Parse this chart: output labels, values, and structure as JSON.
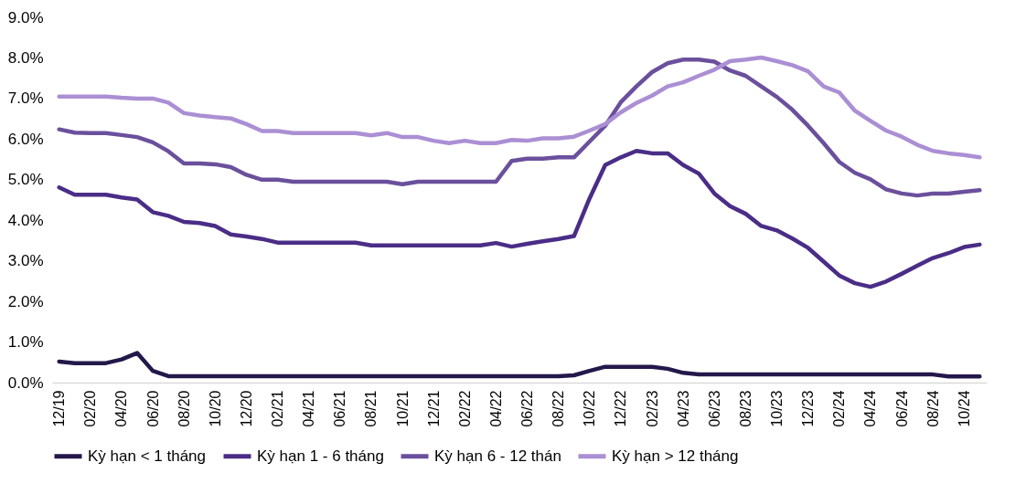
{
  "chart_data": {
    "type": "line",
    "categories": [
      "12/19",
      null,
      "02/20",
      null,
      "04/20",
      null,
      "06/20",
      null,
      "08/20",
      null,
      "10/20",
      null,
      "12/20",
      null,
      "02/21",
      null,
      "04/21",
      null,
      "06/21",
      null,
      "08/21",
      null,
      "10/21",
      null,
      "12/21",
      null,
      "02/22",
      null,
      "04/22",
      null,
      "06/22",
      null,
      "08/22",
      null,
      "10/22",
      null,
      "12/22",
      null,
      "02/23",
      null,
      "04/23",
      null,
      "06/23",
      null,
      "08/23",
      null,
      "10/23",
      null,
      "12/23",
      null,
      "02/24",
      null,
      "04/24",
      null,
      "06/24",
      null,
      "08/24",
      null,
      "10/24",
      null
    ],
    "series": [
      {
        "name": "Kỳ hạn < 1 tháng",
        "color": "#24184a",
        "values": [
          0.52,
          0.48,
          0.48,
          0.48,
          0.57,
          0.73,
          0.29,
          0.16,
          0.16,
          0.16,
          0.16,
          0.16,
          0.16,
          0.16,
          0.16,
          0.16,
          0.16,
          0.16,
          0.16,
          0.16,
          0.16,
          0.16,
          0.16,
          0.16,
          0.16,
          0.16,
          0.16,
          0.16,
          0.16,
          0.16,
          0.16,
          0.16,
          0.16,
          0.18,
          0.29,
          0.39,
          0.39,
          0.39,
          0.39,
          0.34,
          0.24,
          0.2,
          0.2,
          0.2,
          0.2,
          0.2,
          0.2,
          0.2,
          0.2,
          0.2,
          0.2,
          0.2,
          0.2,
          0.2,
          0.2,
          0.2,
          0.2,
          0.15,
          0.15,
          0.15
        ]
      },
      {
        "name": "Kỳ hạn 1 - 6 tháng",
        "color": "#4a2d86",
        "values": [
          4.81,
          4.63,
          4.63,
          4.63,
          4.56,
          4.51,
          4.2,
          4.11,
          3.96,
          3.93,
          3.86,
          3.65,
          3.6,
          3.54,
          3.45,
          3.45,
          3.45,
          3.45,
          3.45,
          3.45,
          3.38,
          3.38,
          3.38,
          3.38,
          3.38,
          3.38,
          3.38,
          3.38,
          3.44,
          3.35,
          3.42,
          3.48,
          3.54,
          3.61,
          4.54,
          5.36,
          5.55,
          5.71,
          5.65,
          5.65,
          5.36,
          5.15,
          4.66,
          4.35,
          4.16,
          3.86,
          3.75,
          3.55,
          3.32,
          2.98,
          2.64,
          2.45,
          2.36,
          2.49,
          2.68,
          2.88,
          3.07,
          3.19,
          3.34,
          3.4
        ]
      },
      {
        "name": "Kỳ hạn 6 - 12 thán",
        "color": "#6a509c",
        "values": [
          6.24,
          6.16,
          6.15,
          6.15,
          6.1,
          6.05,
          5.92,
          5.7,
          5.4,
          5.4,
          5.38,
          5.31,
          5.12,
          5.0,
          5.0,
          4.95,
          4.95,
          4.95,
          4.95,
          4.95,
          4.95,
          4.95,
          4.89,
          4.95,
          4.95,
          4.95,
          4.95,
          4.95,
          4.95,
          5.46,
          5.52,
          5.52,
          5.55,
          5.55,
          5.94,
          6.33,
          6.91,
          7.3,
          7.65,
          7.87,
          7.96,
          7.96,
          7.91,
          7.69,
          7.56,
          7.3,
          7.04,
          6.72,
          6.33,
          5.9,
          5.44,
          5.17,
          5.01,
          4.76,
          4.66,
          4.61,
          4.66,
          4.66,
          4.7,
          4.74
        ]
      },
      {
        "name": "Kỳ hạn > 12 tháng",
        "color": "#ab8fd4",
        "values": [
          7.05,
          7.05,
          7.05,
          7.05,
          7.02,
          7.0,
          7.0,
          6.9,
          6.64,
          6.58,
          6.54,
          6.51,
          6.37,
          6.2,
          6.2,
          6.15,
          6.15,
          6.15,
          6.15,
          6.15,
          6.09,
          6.15,
          6.05,
          6.05,
          5.96,
          5.9,
          5.96,
          5.9,
          5.9,
          5.98,
          5.96,
          6.02,
          6.02,
          6.06,
          6.21,
          6.37,
          6.66,
          6.89,
          7.07,
          7.3,
          7.4,
          7.56,
          7.71,
          7.92,
          7.96,
          8.01,
          7.92,
          7.82,
          7.67,
          7.3,
          7.15,
          6.7,
          6.45,
          6.21,
          6.06,
          5.86,
          5.71,
          5.65,
          5.61,
          5.55
        ]
      }
    ],
    "ylim": [
      0,
      9
    ],
    "yticks": [
      {
        "value": 0,
        "label": "0.0%"
      },
      {
        "value": 1,
        "label": "1.0%"
      },
      {
        "value": 2,
        "label": "2.0%"
      },
      {
        "value": 3,
        "label": "3.0%"
      },
      {
        "value": 4,
        "label": "4.0%"
      },
      {
        "value": 5,
        "label": "5.0%"
      },
      {
        "value": 6,
        "label": "6.0%"
      },
      {
        "value": 7,
        "label": "7.0%"
      },
      {
        "value": 8,
        "label": "8.0%"
      },
      {
        "value": 9,
        "label": "9.0%"
      }
    ],
    "grid": false,
    "legend": "bottom",
    "marker": "none",
    "line_style": "solid"
  }
}
